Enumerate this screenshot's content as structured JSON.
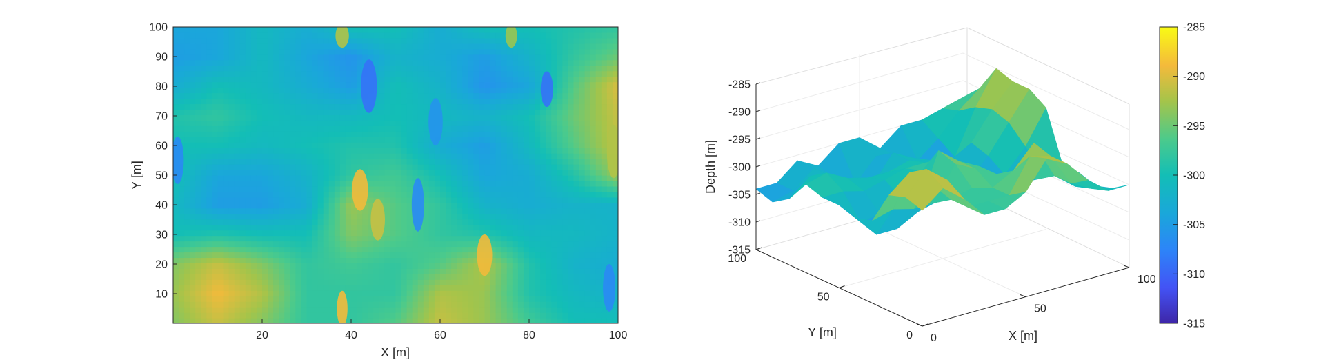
{
  "chart_data": [
    {
      "type": "heatmap",
      "title": "",
      "xlabel": "X [m]",
      "ylabel": "Y [m]",
      "xlim": [
        0,
        100
      ],
      "ylim": [
        0,
        100
      ],
      "x_ticks": [
        "20",
        "40",
        "60",
        "80",
        "100"
      ],
      "y_ticks": [
        "10",
        "20",
        "30",
        "40",
        "50",
        "60",
        "70",
        "80",
        "90",
        "100"
      ],
      "colormap": "parula",
      "clim": [
        -315,
        -285
      ],
      "grid": false,
      "description_values": {
        "x": [
          0,
          10,
          20,
          30,
          40,
          50,
          60,
          70,
          80,
          90,
          100
        ],
        "y": [
          0,
          10,
          20,
          30,
          40,
          50,
          60,
          70,
          80,
          90,
          100
        ],
        "z": [
          [
            -294,
            -291,
            -294,
            -298,
            -298,
            -296,
            -291,
            -293,
            -297,
            -300,
            -300
          ],
          [
            -293,
            -289,
            -292,
            -298,
            -298,
            -298,
            -292,
            -293,
            -299,
            -301,
            -302
          ],
          [
            -294,
            -291,
            -294,
            -298,
            -297,
            -298,
            -296,
            -292,
            -299,
            -302,
            -303
          ],
          [
            -300,
            -299,
            -300,
            -300,
            -294,
            -296,
            -298,
            -299,
            -301,
            -301,
            -302
          ],
          [
            -301,
            -305,
            -305,
            -303,
            -293,
            -296,
            -298,
            -302,
            -303,
            -302,
            -302
          ],
          [
            -300,
            -304,
            -304,
            -302,
            -298,
            -297,
            -300,
            -304,
            -303,
            -299,
            -293
          ],
          [
            -300,
            -300,
            -301,
            -300,
            -299,
            -299,
            -303,
            -305,
            -301,
            -296,
            -291
          ],
          [
            -299,
            -298,
            -300,
            -301,
            -301,
            -300,
            -301,
            -302,
            -300,
            -295,
            -291
          ],
          [
            -303,
            -300,
            -301,
            -303,
            -305,
            -300,
            -302,
            -306,
            -304,
            -296,
            -290
          ],
          [
            -305,
            -304,
            -301,
            -304,
            -306,
            -302,
            -303,
            -305,
            -302,
            -298,
            -295
          ],
          [
            -304,
            -304,
            -301,
            -303,
            -300,
            -300,
            -303,
            -300,
            -300,
            -299,
            -298
          ]
        ]
      }
    },
    {
      "type": "surface",
      "title": "",
      "xlabel": "X [m]",
      "ylabel": "Y [m]",
      "zlabel": "Depth [m]",
      "xlim": [
        0,
        100
      ],
      "ylim": [
        0,
        100
      ],
      "zlim": [
        -315,
        -285
      ],
      "x_ticks": [
        "0",
        "50",
        "100"
      ],
      "y_ticks": [
        "0",
        "50",
        "100"
      ],
      "z_ticks": [
        "-315",
        "-310",
        "-305",
        "-300",
        "-295",
        "-290",
        "-285"
      ],
      "colormap": "parula",
      "grid": true
    }
  ],
  "colorbar": {
    "limits": [
      -315,
      -285
    ],
    "ticks": [
      "-285",
      "-290",
      "-295",
      "-300",
      "-305",
      "-310",
      "-315"
    ]
  }
}
